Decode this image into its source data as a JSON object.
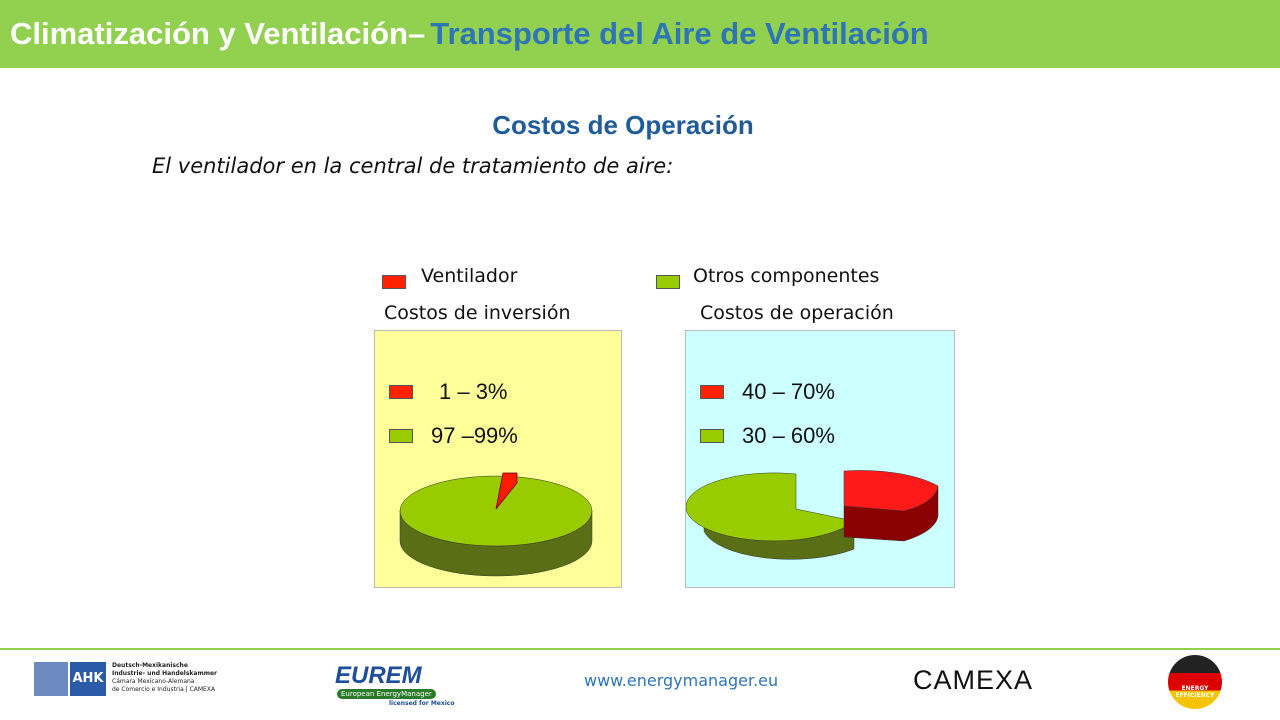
{
  "header": {
    "title_main": "Climatización y Ventilación–",
    "title_sub": "Transporte del Aire de Ventilación"
  },
  "section_title": "Costos de Operación",
  "intro": "El ventilador en la central de tratamiento de aire:",
  "legend": [
    {
      "label": "Ventilador"
    },
    {
      "label": "Otros componentes"
    }
  ],
  "panels": [
    {
      "title": "Costos de inversión",
      "items": [
        "1 – 3%",
        "97 –99%"
      ]
    },
    {
      "title": "Costos de operación",
      "items": [
        "40 – 70%",
        "30 – 60%"
      ]
    }
  ],
  "footer": {
    "ahk": {
      "badge": "AHK",
      "lines": [
        "Deutsch-Mexikanische",
        "Industrie- und Handelskammer",
        "Cámara Mexicano-Alemana",
        "de Comercio e Industria | CAMEXA"
      ]
    },
    "eurem": {
      "name": "EUREM",
      "subtitle": "European EnergyManager",
      "note": "licensed for Mexico"
    },
    "url": "www.energymanager.eu",
    "camexa": "CAMEXA",
    "energy": [
      "ENERGY",
      "EFFICIENCY"
    ]
  }
}
